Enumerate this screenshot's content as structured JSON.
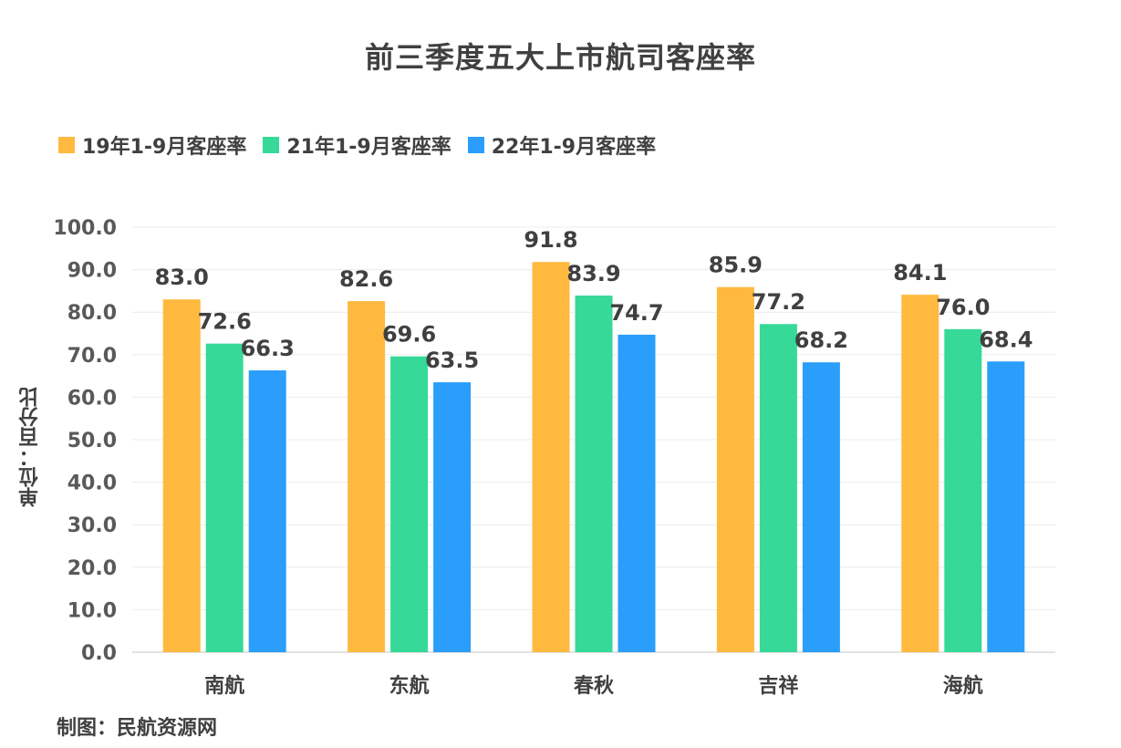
{
  "chart_data": {
    "type": "bar",
    "title": "前三季度五大上市航司客座率",
    "ylabel": "单位：百分比",
    "xlabel": "",
    "ylim": [
      0,
      100
    ],
    "yticks": [
      "0.0",
      "10.0",
      "20.0",
      "30.0",
      "40.0",
      "50.0",
      "60.0",
      "70.0",
      "80.0",
      "90.0",
      "100.0"
    ],
    "grid": true,
    "legend_position": "top-left",
    "categories": [
      "南航",
      "东航",
      "春秋",
      "吉祥",
      "海航"
    ],
    "series": [
      {
        "name": "19年1-9月客座率",
        "color": "#FFB93F",
        "values": [
          83.0,
          82.6,
          91.8,
          85.9,
          84.1
        ],
        "labels": [
          "83.0",
          "82.6",
          "91.8",
          "85.9",
          "84.1"
        ]
      },
      {
        "name": "21年1-9月客座率",
        "color": "#36D997",
        "values": [
          72.6,
          69.6,
          83.9,
          77.2,
          76.0
        ],
        "labels": [
          "72.6",
          "69.6",
          "83.9",
          "77.2",
          "76.0"
        ]
      },
      {
        "name": "22年1-9月客座率",
        "color": "#2B9EFB",
        "values": [
          66.3,
          63.5,
          74.7,
          68.2,
          68.4
        ],
        "labels": [
          "66.3",
          "63.5",
          "74.7",
          "68.2",
          "68.4"
        ]
      }
    ],
    "source_note": "制图：民航资源网"
  }
}
